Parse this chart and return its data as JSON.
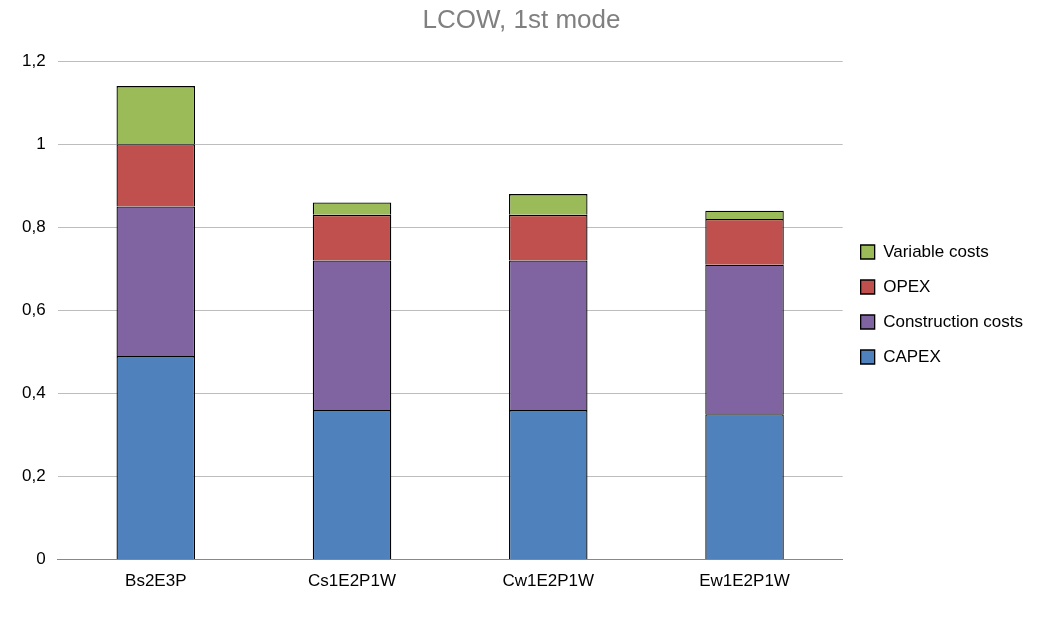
{
  "chart_data": {
    "type": "bar",
    "title": "LCOW, 1st mode",
    "stacked": true,
    "legend": "right",
    "grid": "y",
    "categories": [
      "Bs2E3P",
      "Cs1E2P1W",
      "Cw1E2P1W",
      "Ew1E2P1W"
    ],
    "series": [
      {
        "name": "CAPEX",
        "color": "#4f81bd",
        "values": [
          0.49,
          0.36,
          0.36,
          0.35
        ]
      },
      {
        "name": "Construction costs",
        "color": "#8064a2",
        "values": [
          0.36,
          0.36,
          0.36,
          0.36
        ]
      },
      {
        "name": "OPEX",
        "color": "#c0504d",
        "values": [
          0.15,
          0.11,
          0.11,
          0.11
        ]
      },
      {
        "name": "Variable costs",
        "color": "#9bbb59",
        "values": [
          0.14,
          0.03,
          0.05,
          0.02
        ]
      }
    ],
    "ylim": [
      0,
      1.2
    ],
    "yticks": [
      0,
      {
        "value": 0.2,
        "label": "0,2"
      },
      {
        "value": 0.4,
        "label": "0,4"
      },
      {
        "value": 0.6,
        "label": "0,6"
      },
      {
        "value": 0.8,
        "label": "0,8"
      },
      1,
      {
        "value": 1.2,
        "label": "1,2"
      }
    ]
  }
}
